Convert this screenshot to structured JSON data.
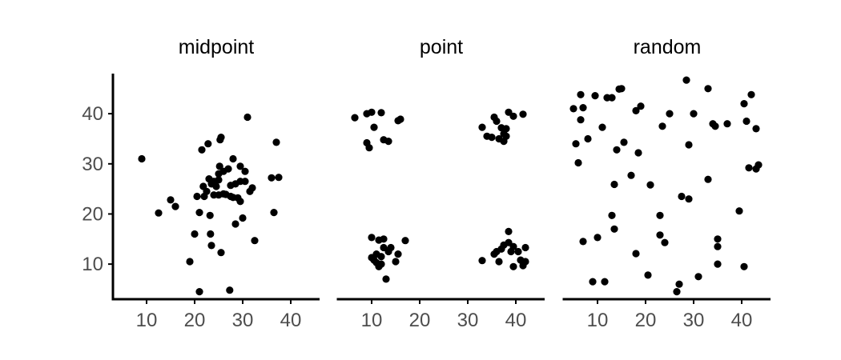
{
  "chart_data": {
    "type": "scatter",
    "facets": [
      "midpoint",
      "point",
      "random"
    ],
    "xlim": [
      3,
      46
    ],
    "ylim": [
      3,
      48
    ],
    "x_ticks": [
      10,
      20,
      30,
      40
    ],
    "y_ticks": [
      10,
      20,
      30,
      40
    ],
    "grid": false,
    "panels": [
      {
        "title": "midpoint",
        "points": [
          [
            9.0,
            31.0
          ],
          [
            12.5,
            20.2
          ],
          [
            15.0,
            22.8
          ],
          [
            16.0,
            21.5
          ],
          [
            19.0,
            10.5
          ],
          [
            20.0,
            16.0
          ],
          [
            20.5,
            23.5
          ],
          [
            21.0,
            20.3
          ],
          [
            21.0,
            4.5
          ],
          [
            21.5,
            32.8
          ],
          [
            21.8,
            25.5
          ],
          [
            22.0,
            23.5
          ],
          [
            22.5,
            24.5
          ],
          [
            22.8,
            34.0
          ],
          [
            23.0,
            27.0
          ],
          [
            23.2,
            19.7
          ],
          [
            23.5,
            26.0
          ],
          [
            23.3,
            16.0
          ],
          [
            23.5,
            13.7
          ],
          [
            24.0,
            26.5
          ],
          [
            24.0,
            23.8
          ],
          [
            24.5,
            25.5
          ],
          [
            25.0,
            28.0
          ],
          [
            25.0,
            26.8
          ],
          [
            25.2,
            29.5
          ],
          [
            25.0,
            23.8
          ],
          [
            25.5,
            35.3
          ],
          [
            25.3,
            34.8
          ],
          [
            25.5,
            12.3
          ],
          [
            26.0,
            28.5
          ],
          [
            26.0,
            24.0
          ],
          [
            26.5,
            23.9
          ],
          [
            27.0,
            29.0
          ],
          [
            27.5,
            25.7
          ],
          [
            27.5,
            23.5
          ],
          [
            27.3,
            4.8
          ],
          [
            28.0,
            31.0
          ],
          [
            28.5,
            26.0
          ],
          [
            28.0,
            23.3
          ],
          [
            28.5,
            18.0
          ],
          [
            29.0,
            23.2
          ],
          [
            29.5,
            26.5
          ],
          [
            29.5,
            22.5
          ],
          [
            29.5,
            29.5
          ],
          [
            30.0,
            19.2
          ],
          [
            30.5,
            28.5
          ],
          [
            30.5,
            26.5
          ],
          [
            31.0,
            39.3
          ],
          [
            31.5,
            24.5
          ],
          [
            32.0,
            25.2
          ],
          [
            32.5,
            14.7
          ],
          [
            36.0,
            27.2
          ],
          [
            36.5,
            20.3
          ],
          [
            37.0,
            34.3
          ],
          [
            37.5,
            27.3
          ]
        ]
      },
      {
        "title": "point",
        "points": [
          [
            6.5,
            39.2
          ],
          [
            9.0,
            40.0
          ],
          [
            9.0,
            34.2
          ],
          [
            9.5,
            33.2
          ],
          [
            10.0,
            40.3
          ],
          [
            10.5,
            37.3
          ],
          [
            12.0,
            40.2
          ],
          [
            12.5,
            34.8
          ],
          [
            13.5,
            34.5
          ],
          [
            15.5,
            38.6
          ],
          [
            16.0,
            38.9
          ],
          [
            10.0,
            15.3
          ],
          [
            10.0,
            11.3
          ],
          [
            10.5,
            10.8
          ],
          [
            11.0,
            12.0
          ],
          [
            11.0,
            10.3
          ],
          [
            11.5,
            9.5
          ],
          [
            11.5,
            14.8
          ],
          [
            12.0,
            11.5
          ],
          [
            12.0,
            10.0
          ],
          [
            12.5,
            15.0
          ],
          [
            12.5,
            13.3
          ],
          [
            13.0,
            7.0
          ],
          [
            13.5,
            12.5
          ],
          [
            14.0,
            13.3
          ],
          [
            15.0,
            10.5
          ],
          [
            15.5,
            12.0
          ],
          [
            17.0,
            14.7
          ],
          [
            33.0,
            37.3
          ],
          [
            34.0,
            35.5
          ],
          [
            35.0,
            35.3
          ],
          [
            35.5,
            39.3
          ],
          [
            36.0,
            38.5
          ],
          [
            36.5,
            35.0
          ],
          [
            37.0,
            37.2
          ],
          [
            37.5,
            36.0
          ],
          [
            37.5,
            34.5
          ],
          [
            38.0,
            37.0
          ],
          [
            38.0,
            35.5
          ],
          [
            38.5,
            40.3
          ],
          [
            39.5,
            39.5
          ],
          [
            41.5,
            39.9
          ],
          [
            33.0,
            10.7
          ],
          [
            35.5,
            12.0
          ],
          [
            36.0,
            12.5
          ],
          [
            36.5,
            10.5
          ],
          [
            37.0,
            13.0
          ],
          [
            37.5,
            13.8
          ],
          [
            38.5,
            16.5
          ],
          [
            38.5,
            14.3
          ],
          [
            39.0,
            12.5
          ],
          [
            39.5,
            13.5
          ],
          [
            39.5,
            9.5
          ],
          [
            40.5,
            12.5
          ],
          [
            41.0,
            10.8
          ],
          [
            41.5,
            9.7
          ],
          [
            42.0,
            13.3
          ],
          [
            42.0,
            10.5
          ]
        ]
      },
      {
        "title": "random",
        "points": [
          [
            5.0,
            41.0
          ],
          [
            5.5,
            34.0
          ],
          [
            6.0,
            30.2
          ],
          [
            6.5,
            43.8
          ],
          [
            6.5,
            38.8
          ],
          [
            7.0,
            41.2
          ],
          [
            7.0,
            14.5
          ],
          [
            8.0,
            35.0
          ],
          [
            9.0,
            6.5
          ],
          [
            9.5,
            43.6
          ],
          [
            10.0,
            15.3
          ],
          [
            11.0,
            37.3
          ],
          [
            11.5,
            6.5
          ],
          [
            12.0,
            43.2
          ],
          [
            13.0,
            43.2
          ],
          [
            13.0,
            19.7
          ],
          [
            13.5,
            17.0
          ],
          [
            13.5,
            25.9
          ],
          [
            14.5,
            44.9
          ],
          [
            14.0,
            32.8
          ],
          [
            15.0,
            45.0
          ],
          [
            15.5,
            34.3
          ],
          [
            17.0,
            27.7
          ],
          [
            18.0,
            12.1
          ],
          [
            18.0,
            40.6
          ],
          [
            18.5,
            32.2
          ],
          [
            19.0,
            41.5
          ],
          [
            20.5,
            7.8
          ],
          [
            21.0,
            25.8
          ],
          [
            23.0,
            15.8
          ],
          [
            23.0,
            19.7
          ],
          [
            23.5,
            37.5
          ],
          [
            24.0,
            14.3
          ],
          [
            25.0,
            40.0
          ],
          [
            26.5,
            4.5
          ],
          [
            27.5,
            23.5
          ],
          [
            27.0,
            6.0
          ],
          [
            28.5,
            46.7
          ],
          [
            29.0,
            33.8
          ],
          [
            29.0,
            23.0
          ],
          [
            30.0,
            40.0
          ],
          [
            31.0,
            7.5
          ],
          [
            33.0,
            45.0
          ],
          [
            33.0,
            26.9
          ],
          [
            34.0,
            38.0
          ],
          [
            34.5,
            37.5
          ],
          [
            35.0,
            15.0
          ],
          [
            35.0,
            13.5
          ],
          [
            35.0,
            10.0
          ],
          [
            37.0,
            38.0
          ],
          [
            39.5,
            20.6
          ],
          [
            40.5,
            42.0
          ],
          [
            40.5,
            9.5
          ],
          [
            41.0,
            38.5
          ],
          [
            41.5,
            29.2
          ],
          [
            42.0,
            43.8
          ],
          [
            43.0,
            29.0
          ],
          [
            43.0,
            37.0
          ],
          [
            43.5,
            29.8
          ]
        ]
      }
    ]
  }
}
